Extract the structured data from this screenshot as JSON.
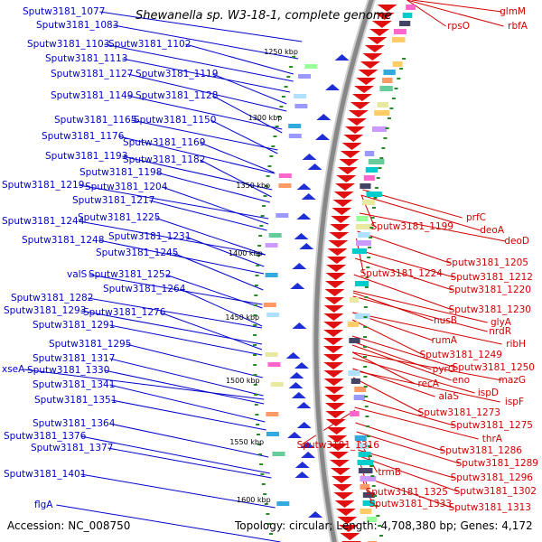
{
  "title": "Shewanella sp. W3-18-1, complete genome",
  "accession": "Accession: NC_008750",
  "topology": "Topology: circular; Length: 4,708,380 bp; Genes: 4,172",
  "colors": {
    "left_label": "#0000cc",
    "right_label": "#d00000",
    "forward_arrow": "#1f2fd6",
    "reverse_arrow": "#e01010",
    "backbone": "#888888",
    "tick": "#2a8a2a"
  },
  "kbp_labels": [
    "1250 kbp",
    "1300 kbp",
    "1350 kbp",
    "1400 kbp",
    "1450 kbp",
    "1500 kbp",
    "1550 kbp",
    "1600 kbp"
  ],
  "left_labels": [
    "Sputw3181_1077",
    "Sputw3181_1083",
    "Sputw3181_1103",
    "Sputw3181_1102",
    "Sputw3181_1113",
    "Sputw3181_1127",
    "Sputw3181_1119",
    "Sputw3181_1149",
    "Sputw3181_1128",
    "Sputw3181_1165",
    "Sputw3181_1150",
    "Sputw3181_1176",
    "Sputw3181_1169",
    "Sputw3181_1193",
    "Sputw3181_1182",
    "Sputw3181_1198",
    "Sputw3181_1219",
    "Sputw3181_1204",
    "Sputw3181_1217",
    "Sputw3181_1244",
    "Sputw3181_1225",
    "Sputw3181_1231",
    "Sputw3181_1248",
    "Sputw3181_1245",
    "valS",
    "Sputw3181_1252",
    "Sputw3181_1264",
    "Sputw3181_1282",
    "Sputw3181_1293",
    "Sputw3181_1276",
    "Sputw3181_1291",
    "Sputw3181_1295",
    "Sputw3181_1317",
    "xseA",
    "Sputw3181_1330",
    "Sputw3181_1341",
    "Sputw3181_1351",
    "Sputw3181_1364",
    "Sputw3181_1376",
    "Sputw3181_1377",
    "Sputw3181_1401",
    "flgA"
  ],
  "right_labels": [
    "glmM",
    "rpsO",
    "rbfA",
    "prfC",
    "Sputw3181_1199",
    "deoA",
    "deoD",
    "Sputw3181_1205",
    "Sputw3181_1224",
    "Sputw3181_1212",
    "Sputw3181_1220",
    "Sputw3181_1230",
    "nusB",
    "glyA",
    "nrdR",
    "rumA",
    "ribH",
    "Sputw3181_1249",
    "pyrG",
    "Sputw3181_1250",
    "eno",
    "mazG",
    "recA",
    "ispD",
    "alaS",
    "ispF",
    "Sputw3181_1273",
    "Sputw3181_1275",
    "thrA",
    "Sputw3181_1316",
    "Sputw3181_1286",
    "Sputw3181_1289",
    "trmB",
    "Sputw3181_1296",
    "Sputw3181_1325",
    "Sputw3181_1302",
    "Sputw3181_1333",
    "Sputw3181_1313"
  ]
}
